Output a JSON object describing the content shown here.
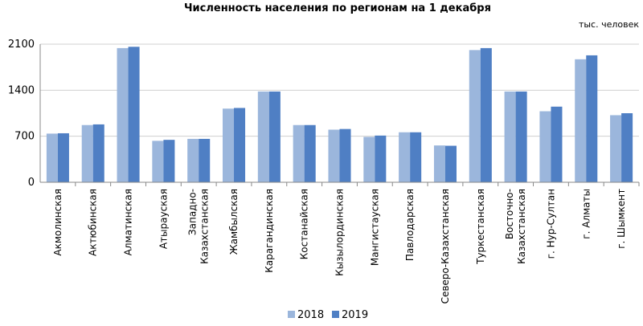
{
  "chart_data": {
    "type": "bar",
    "title": "Численность населения по регионам на 1 декабря",
    "unit_label": "тыс. человек",
    "categories": [
      [
        "Акмолинская"
      ],
      [
        "Актюбинская"
      ],
      [
        "Алматинская"
      ],
      [
        "Атырауская"
      ],
      [
        "Западно-",
        "Казахстанская"
      ],
      [
        "Жамбылская"
      ],
      [
        "Карагандинская"
      ],
      [
        "Костанайская"
      ],
      [
        "Кызылординская"
      ],
      [
        "Мангистауская"
      ],
      [
        "Павлодарская"
      ],
      [
        "Северо-Казахстанская"
      ],
      [
        "Туркестанская"
      ],
      [
        "Восточно-",
        "Казахстанская"
      ],
      [
        "г. Нур-Султан"
      ],
      [
        "г. Алматы"
      ],
      [
        "г. Шымкент"
      ]
    ],
    "series": [
      {
        "name": "2018",
        "color": "#9bb6dc",
        "values": [
          740,
          870,
          2040,
          630,
          660,
          1120,
          1380,
          870,
          800,
          690,
          760,
          560,
          2010,
          1380,
          1080,
          1870,
          1020
        ]
      },
      {
        "name": "2019",
        "color": "#4f7fc4",
        "values": [
          745,
          880,
          2060,
          645,
          660,
          1130,
          1380,
          870,
          810,
          710,
          760,
          555,
          2040,
          1380,
          1150,
          1930,
          1050
        ]
      }
    ],
    "ylim": [
      0,
      2100
    ],
    "yticks": [
      0,
      700,
      1400,
      2100
    ],
    "grid": true,
    "legend": "bottom"
  }
}
